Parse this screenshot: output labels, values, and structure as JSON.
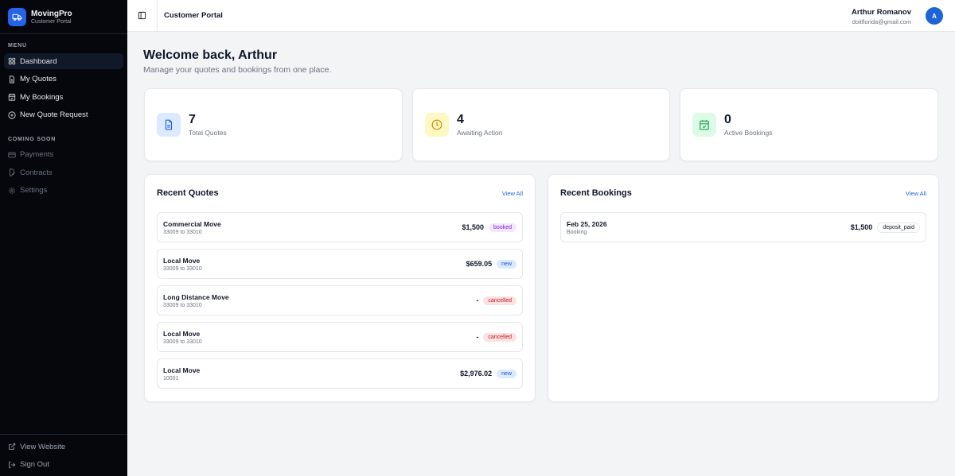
{
  "brand": {
    "name": "MovingPro",
    "subtitle": "Customer Portal"
  },
  "sidebar": {
    "menu_label": "MENU",
    "items": [
      {
        "label": "Dashboard",
        "icon": "layout-grid-icon"
      },
      {
        "label": "My Quotes",
        "icon": "file-text-icon"
      },
      {
        "label": "My Bookings",
        "icon": "calendar-check-icon"
      },
      {
        "label": "New Quote Request",
        "icon": "plus-circle-icon"
      }
    ],
    "coming_soon_label": "COMING SOON",
    "coming_soon": [
      {
        "label": "Payments",
        "icon": "credit-card-icon"
      },
      {
        "label": "Contracts",
        "icon": "file-signature-icon"
      },
      {
        "label": "Settings",
        "icon": "gear-icon"
      }
    ],
    "bottom": [
      {
        "label": "View Website",
        "icon": "external-link-icon"
      },
      {
        "label": "Sign Out",
        "icon": "log-out-icon"
      }
    ]
  },
  "header": {
    "title": "Customer Portal",
    "user_name": "Arthur Romanov",
    "user_email": "doitflorida@gmail.com",
    "avatar_initial": "A"
  },
  "welcome": {
    "title": "Welcome back, Arthur",
    "subtitle": "Manage your quotes and bookings from one place."
  },
  "stats": [
    {
      "value": "7",
      "label": "Total Quotes",
      "icon": "file-text-icon",
      "color": "#2563eb",
      "bg": "#dbeafe"
    },
    {
      "value": "4",
      "label": "Awaiting Action",
      "icon": "clock-icon",
      "color": "#ca8a04",
      "bg": "#fef9c3"
    },
    {
      "value": "0",
      "label": "Active Bookings",
      "icon": "calendar-check-icon",
      "color": "#16a34a",
      "bg": "#dcfce7"
    }
  ],
  "recent_quotes": {
    "title": "Recent Quotes",
    "view_all": "View All",
    "items": [
      {
        "title": "Commercial Move",
        "route": "33009 to 33010",
        "amount": "$1,500",
        "status": "booked"
      },
      {
        "title": "Local Move",
        "route": "33009 to 33010",
        "amount": "$659.05",
        "status": "new"
      },
      {
        "title": "Long Distance Move",
        "route": "33009 to 33010",
        "amount": "-",
        "status": "cancelled"
      },
      {
        "title": "Local Move",
        "route": "33009 to 33010",
        "amount": "-",
        "status": "cancelled"
      },
      {
        "title": "Local Move",
        "route": "10001",
        "amount": "$2,976.02",
        "status": "new"
      }
    ]
  },
  "recent_bookings": {
    "title": "Recent Bookings",
    "view_all": "View All",
    "items": [
      {
        "date": "Feb 25, 2026",
        "type": "Booking",
        "amount": "$1,500",
        "status": "deposit_paid"
      }
    ]
  }
}
